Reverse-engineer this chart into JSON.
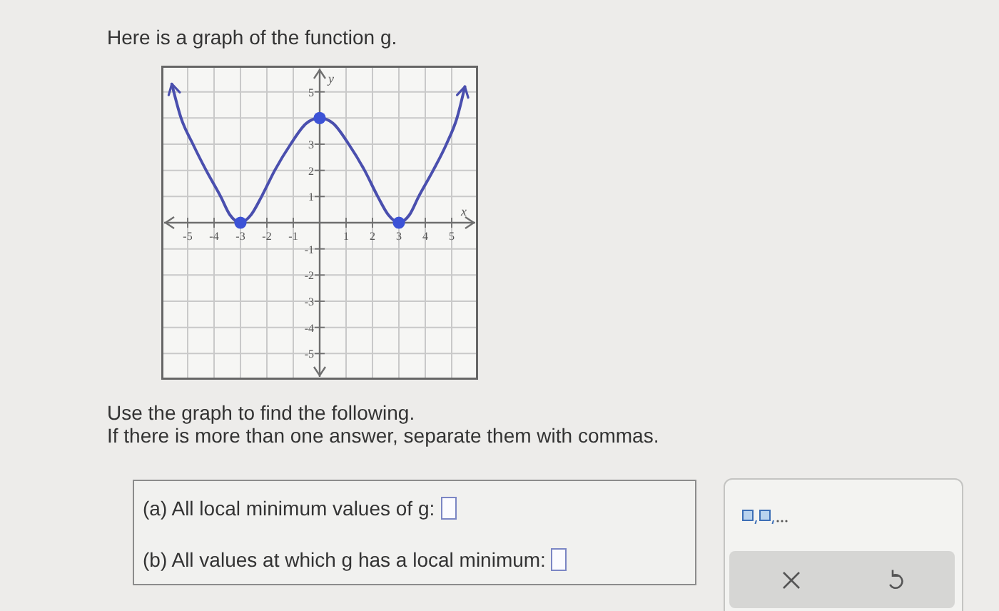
{
  "chart_data": {
    "type": "line",
    "title": "Here is a graph of the function g.",
    "xlabel": "x",
    "ylabel": "y",
    "annotations": [
      "Use the graph to find the following.",
      "If there is more than one answer, separate them with commas.",
      "(a) All local minimum values of g:",
      "(b) All values at which g has a local minimum:"
    ],
    "series": [
      {
        "type": "line",
        "color": "#4a4fae",
        "x": [
          -5.6,
          -5.25,
          -4.8,
          -4.3,
          -3.75,
          -3.4,
          -3,
          -2.6,
          -2.2,
          -1.7,
          -1.1,
          -0.5,
          0,
          0.5,
          1.1,
          1.7,
          2.2,
          2.6,
          3,
          3.4,
          3.75,
          4.3,
          4.8,
          5.2,
          5.5
        ],
        "values": [
          5.3,
          4,
          3,
          2,
          1,
          0.3,
          0,
          0.3,
          1,
          2,
          3,
          3.8,
          4,
          3.8,
          3,
          2,
          1,
          0.3,
          0,
          0.3,
          1,
          2,
          3,
          4,
          5.2
        ]
      },
      {
        "type": "scatter",
        "color": "#3c52d6",
        "marker": "circle",
        "x": [
          -3,
          0,
          3
        ],
        "values": [
          0,
          4,
          0
        ]
      }
    ],
    "xlim": [
      -6,
      6
    ],
    "ylim": [
      -6,
      6
    ],
    "xticks": [
      -5,
      -4,
      -3,
      -2,
      -1,
      1,
      2,
      3,
      4,
      5
    ],
    "yticks": [
      -5,
      -4,
      -3,
      -2,
      -1,
      1,
      2,
      3,
      {
        "value": 4,
        "label": null
      },
      5
    ],
    "grid": true
  }
}
